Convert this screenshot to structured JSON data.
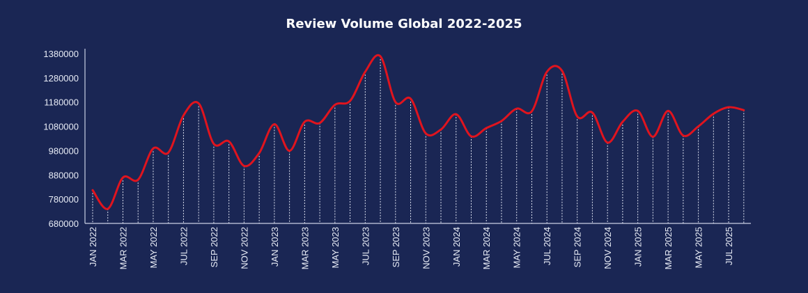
{
  "chart_data": {
    "type": "line",
    "title": "Review Volume Global 2022-2025",
    "xlabel": "",
    "ylabel": "",
    "ylim": [
      680000,
      1380000
    ],
    "yticks": [
      680000,
      780000,
      880000,
      980000,
      1080000,
      1180000,
      1280000,
      1380000
    ],
    "xtick_labels": [
      "JAN 2022",
      "MAR 2022",
      "MAY 2022",
      "JUL 2022",
      "SEP 2022",
      "NOV 2022",
      "JAN 2023",
      "MAR 2023",
      "MAY 2023",
      "JUL 2023",
      "SEP 2023",
      "NOV 2023",
      "JAN 2024",
      "MAR 2024",
      "MAY 2024",
      "JUL 2024",
      "SEP 2024",
      "NOV 2024",
      "JAN 2025",
      "MAR 2025",
      "MAY 2025",
      "JUL 2025"
    ],
    "x": [
      "2022-01",
      "2022-02",
      "2022-03",
      "2022-04",
      "2022-05",
      "2022-06",
      "2022-07",
      "2022-08",
      "2022-09",
      "2022-10",
      "2022-11",
      "2022-12",
      "2023-01",
      "2023-02",
      "2023-03",
      "2023-04",
      "2023-05",
      "2023-06",
      "2023-07",
      "2023-08",
      "2023-09",
      "2023-10",
      "2023-11",
      "2023-12",
      "2024-01",
      "2024-02",
      "2024-03",
      "2024-04",
      "2024-05",
      "2024-06",
      "2024-07",
      "2024-08",
      "2024-09",
      "2024-10",
      "2024-11",
      "2024-12",
      "2025-01",
      "2025-02",
      "2025-03",
      "2025-04",
      "2025-05",
      "2025-06",
      "2025-07",
      "2025-08"
    ],
    "values": [
      817000,
      740000,
      869000,
      860000,
      989000,
      972000,
      1125000,
      1175000,
      1008000,
      1018000,
      917000,
      970000,
      1089000,
      979000,
      1099000,
      1094000,
      1169000,
      1185000,
      1305000,
      1369000,
      1180000,
      1194000,
      1051000,
      1067000,
      1130000,
      1039000,
      1073000,
      1102000,
      1153000,
      1142000,
      1305000,
      1309000,
      1121000,
      1137000,
      1013000,
      1099000,
      1144000,
      1037000,
      1144000,
      1042000,
      1080000,
      1132000,
      1159000,
      1147000
    ],
    "grid": false,
    "drop_lines": "dotted",
    "colors": {
      "background": "#1a2654",
      "line": "#e0141e",
      "axis": "#c9d0e3",
      "text": "#ffffff"
    }
  }
}
